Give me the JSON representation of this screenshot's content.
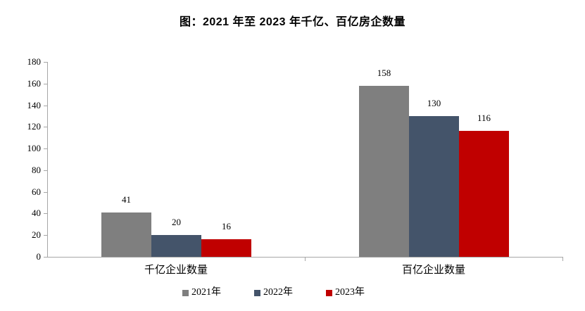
{
  "chart_data": {
    "type": "bar",
    "title": "图：2021 年至 2023 年千亿、百亿房企数量",
    "categories": [
      "千亿企业数量",
      "百亿企业数量"
    ],
    "series": [
      {
        "name": "2021年",
        "color": "#7F7F7F",
        "values": [
          41,
          158
        ]
      },
      {
        "name": "2022年",
        "color": "#44546A",
        "values": [
          20,
          130
        ]
      },
      {
        "name": "2023年",
        "color": "#C00000",
        "values": [
          16,
          116
        ]
      }
    ],
    "ylim": [
      0,
      180
    ],
    "yticks": [
      0,
      20,
      40,
      60,
      80,
      100,
      120,
      140,
      160,
      180
    ],
    "grid": false,
    "legend_position": "bottom",
    "value_labels_shown": true,
    "axis_color": "#A6A6A6",
    "text_color": "#000000",
    "background_color": "#FFFFFF"
  }
}
